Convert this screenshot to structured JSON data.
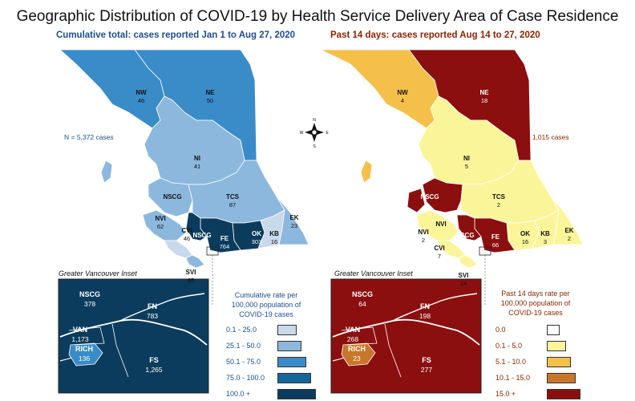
{
  "title": "Geographic Distribution of COVID-19 by Health Service Delivery Area of Case Residence",
  "left_map": {
    "subtitle": "Cumulative total: cases reported Jan 1 to Aug 27, 2020",
    "n_cases": "N = 5,372 cases",
    "inset_title": "Greater Vancouver Inset",
    "legend_title": "Cumulative rate per 100,000 population of COVID-19 cases",
    "legend": [
      {
        "label": "0.1 - 25.0",
        "color": "#c9d9ec"
      },
      {
        "label": "25.1 - 50.0",
        "color": "#8cb8de"
      },
      {
        "label": "50.1 - 75.0",
        "color": "#3a8cc8"
      },
      {
        "label": "75.0 - 100.0",
        "color": "#15679a"
      },
      {
        "label": "100.0 +",
        "color": "#0b3c5d"
      }
    ],
    "regions": [
      {
        "code": "NW",
        "value": "46"
      },
      {
        "code": "NE",
        "value": "50"
      },
      {
        "code": "NI",
        "value": "41"
      },
      {
        "code": "NSCG",
        "value": ""
      },
      {
        "code": "TCS",
        "value": "87"
      },
      {
        "code": "NVI",
        "value": "62"
      },
      {
        "code": "OK",
        "value": "303"
      },
      {
        "code": "KB",
        "value": "16"
      },
      {
        "code": "EK",
        "value": "23"
      },
      {
        "code": "CVI",
        "value": "46"
      },
      {
        "code": "SVI",
        "value": "65"
      },
      {
        "code": "FE",
        "value": "764"
      }
    ],
    "inset": [
      {
        "code": "NSCG",
        "value": "378"
      },
      {
        "code": "FN",
        "value": "783"
      },
      {
        "code": "VAN",
        "value": "1,173"
      },
      {
        "code": "RICH",
        "value": "136"
      },
      {
        "code": "FS",
        "value": "1,265"
      }
    ]
  },
  "right_map": {
    "subtitle": "Past 14 days: cases reported Aug 14 to 27, 2020",
    "n_cases": "N = 1,015 cases",
    "inset_title": "Greater Vancouver Inset",
    "legend_title": "Past 14 days rate per 100,000 population of COVID-19 cases",
    "legend": [
      {
        "label": "0.0",
        "color": "#ffffff"
      },
      {
        "label": "0.1 - 5.0",
        "color": "#fbf59a"
      },
      {
        "label": "5.1 - 10.0",
        "color": "#f5c04a"
      },
      {
        "label": "10.1 - 15.0",
        "color": "#c8762a"
      },
      {
        "label": "15.0 +",
        "color": "#8b0f0f"
      }
    ],
    "regions": [
      {
        "code": "NW",
        "value": "4"
      },
      {
        "code": "NE",
        "value": "18"
      },
      {
        "code": "NI",
        "value": "5"
      },
      {
        "code": "NSCG",
        "value": ""
      },
      {
        "code": "TCS",
        "value": "2"
      },
      {
        "code": "NVI",
        "value": ""
      },
      {
        "code": "OK",
        "value": "16"
      },
      {
        "code": "KB",
        "value": "3"
      },
      {
        "code": "EK",
        "value": "2"
      },
      {
        "code": "NVI2",
        "value": "2"
      },
      {
        "code": "CVI",
        "value": "7"
      },
      {
        "code": "SVI",
        "value": "14"
      },
      {
        "code": "FE",
        "value": "66"
      }
    ],
    "inset": [
      {
        "code": "NSCG",
        "value": "64"
      },
      {
        "code": "FN",
        "value": "198"
      },
      {
        "code": "VAN",
        "value": "268"
      },
      {
        "code": "RICH",
        "value": "23"
      },
      {
        "code": "FS",
        "value": "277"
      }
    ]
  },
  "compass": {
    "n": "N",
    "s": "S",
    "e": "E",
    "w": "W"
  }
}
